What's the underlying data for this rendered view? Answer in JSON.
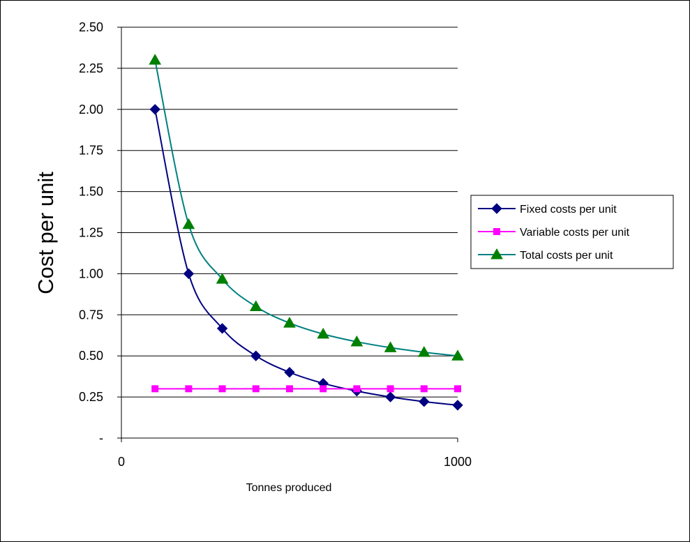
{
  "chart_data": {
    "type": "line",
    "title": "",
    "xlabel": "Tonnes produced",
    "ylabel": "Cost per unit",
    "xlim": [
      0,
      1000
    ],
    "ylim": [
      0,
      2.5
    ],
    "x_tick_labels": [
      "0",
      "1000"
    ],
    "x_tick_values": [
      0,
      1000
    ],
    "y_tick_values": [
      0,
      0.25,
      0.5,
      0.75,
      1.0,
      1.25,
      1.5,
      1.75,
      2.0,
      2.25,
      2.5
    ],
    "y_tick_labels": [
      "-",
      "0.25",
      "0.50",
      "0.75",
      "1.00",
      "1.25",
      "1.50",
      "1.75",
      "2.00",
      "2.25",
      "2.50"
    ],
    "grid": "horizontal",
    "legend_position": "right",
    "x": [
      100,
      200,
      300,
      400,
      500,
      600,
      700,
      800,
      900,
      1000
    ],
    "series": [
      {
        "name": "Fixed costs per unit",
        "color": "#000080",
        "marker": "diamond",
        "values": [
          2.0,
          1.0,
          0.667,
          0.5,
          0.4,
          0.333,
          0.286,
          0.25,
          0.222,
          0.2
        ]
      },
      {
        "name": "Variable costs per unit",
        "color": "#ff00ff",
        "marker": "square",
        "values": [
          0.3,
          0.3,
          0.3,
          0.3,
          0.3,
          0.3,
          0.3,
          0.3,
          0.3,
          0.3
        ]
      },
      {
        "name": "Total costs per unit",
        "color": "#008080",
        "marker_color": "#008000",
        "marker": "triangle",
        "values": [
          2.3,
          1.3,
          0.967,
          0.8,
          0.7,
          0.633,
          0.586,
          0.55,
          0.522,
          0.5
        ]
      }
    ]
  }
}
